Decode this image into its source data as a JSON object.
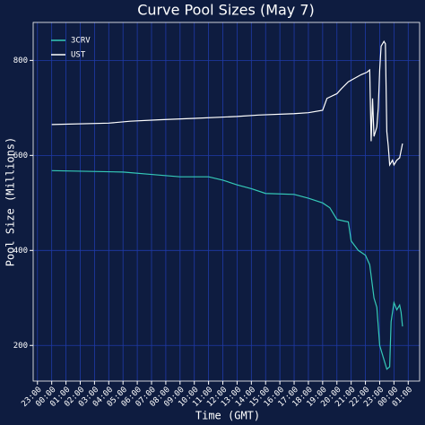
{
  "chart_data": {
    "type": "line",
    "title": "Curve Pool Sizes (May 7)",
    "xlabel": "Time (GMT)",
    "ylabel": "Pool Size (Millions)",
    "xlim": [
      -1.3,
      25.8
    ],
    "ylim": [
      125,
      880
    ],
    "yticks": [
      200,
      400,
      600,
      800
    ],
    "xticks": [
      {
        "value": -1,
        "label": "23:00"
      },
      {
        "value": 0,
        "label": "00:00"
      },
      {
        "value": 1,
        "label": "01:00"
      },
      {
        "value": 2,
        "label": "02:00"
      },
      {
        "value": 3,
        "label": "03:00"
      },
      {
        "value": 4,
        "label": "04:00"
      },
      {
        "value": 5,
        "label": "05:00"
      },
      {
        "value": 6,
        "label": "06:00"
      },
      {
        "value": 7,
        "label": "07:00"
      },
      {
        "value": 8,
        "label": "08:00"
      },
      {
        "value": 9,
        "label": "09:00"
      },
      {
        "value": 10,
        "label": "10:00"
      },
      {
        "value": 11,
        "label": "11:00"
      },
      {
        "value": 12,
        "label": "12:00"
      },
      {
        "value": 13,
        "label": "13:00"
      },
      {
        "value": 14,
        "label": "14:00"
      },
      {
        "value": 15,
        "label": "15:00"
      },
      {
        "value": 16,
        "label": "16:00"
      },
      {
        "value": 17,
        "label": "17:00"
      },
      {
        "value": 18,
        "label": "18:00"
      },
      {
        "value": 19,
        "label": "19:00"
      },
      {
        "value": 20,
        "label": "20:00"
      },
      {
        "value": 21,
        "label": "21:00"
      },
      {
        "value": 22,
        "label": "22:00"
      },
      {
        "value": 23,
        "label": "23:00"
      },
      {
        "value": 24,
        "label": "00:00"
      },
      {
        "value": 25,
        "label": "01:00"
      }
    ],
    "grid": true,
    "legend": "upper left",
    "series": [
      {
        "name": "3CRV",
        "color": "#35c9b8",
        "x": [
          0,
          5,
          7,
          9,
          11,
          12,
          13,
          14,
          15,
          17,
          18,
          19,
          19.5,
          20,
          20.8,
          21,
          21.5,
          22,
          22.3,
          22.6,
          22.8,
          23.0,
          23.3,
          23.5,
          23.7,
          23.8,
          24.0,
          24.2,
          24.4,
          24.5,
          24.6
        ],
        "values": [
          568,
          565,
          560,
          555,
          555,
          548,
          538,
          530,
          520,
          518,
          510,
          500,
          490,
          465,
          460,
          420,
          400,
          390,
          370,
          300,
          280,
          200,
          170,
          150,
          155,
          250,
          290,
          275,
          285,
          270,
          240
        ]
      },
      {
        "name": "UST",
        "color": "#ffffff",
        "x": [
          0,
          4,
          5.5,
          7.5,
          10,
          13,
          14.5,
          17,
          18,
          19,
          19.3,
          20,
          20.3,
          20.8,
          21.7,
          22.1,
          22.3,
          22.4,
          22.5,
          22.6,
          22.8,
          22.9,
          23.0,
          23.1,
          23.3,
          23.4,
          23.5,
          23.6,
          23.7,
          23.9,
          24.0,
          24.2,
          24.4,
          24.6
        ],
        "values": [
          665,
          668,
          672,
          675,
          678,
          682,
          685,
          688,
          690,
          695,
          720,
          730,
          740,
          755,
          770,
          775,
          780,
          630,
          720,
          640,
          660,
          700,
          780,
          830,
          840,
          835,
          650,
          620,
          580,
          590,
          580,
          590,
          595,
          625
        ]
      }
    ]
  }
}
